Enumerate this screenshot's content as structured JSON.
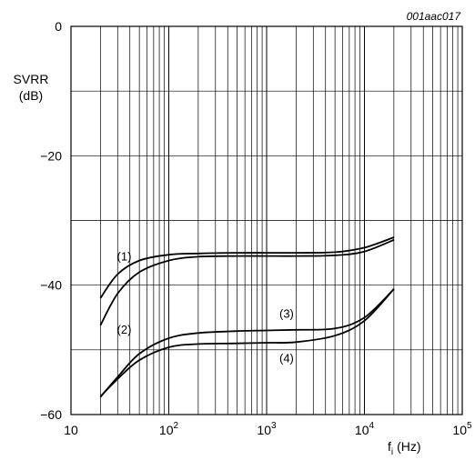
{
  "chart_data": {
    "type": "line",
    "reference_id": "001aac017",
    "y_title_line1": "SVRR",
    "y_title_line2": "(dB)",
    "x_title_main": "f",
    "x_title_sub": "i",
    "x_title_unit": "(Hz)",
    "x_scale": "log",
    "xlim": [
      10,
      100000
    ],
    "ylim": [
      -60,
      0
    ],
    "grid": true,
    "y_tick_values": [
      0,
      -20,
      -40,
      -60
    ],
    "y_tick_labels": [
      "0",
      "−20",
      "−40",
      "−60"
    ],
    "x_tick_labels": [
      {
        "value": 10,
        "base": "10",
        "exp": ""
      },
      {
        "value": 100,
        "base": "10",
        "exp": "2"
      },
      {
        "value": 1000,
        "base": "10",
        "exp": "3"
      },
      {
        "value": 10000,
        "base": "10",
        "exp": "4"
      },
      {
        "value": 100000,
        "base": "10",
        "exp": "5"
      }
    ],
    "series": [
      {
        "name": "(1)",
        "label_at": [
          35,
          -35.5
        ],
        "x": [
          20,
          30,
          50,
          100,
          200,
          500,
          1000,
          2000,
          5000,
          10000,
          20000
        ],
        "y": [
          -42,
          -38.3,
          -36.2,
          -35.3,
          -35.1,
          -35.0,
          -35.0,
          -35.0,
          -34.9,
          -34.2,
          -32.6
        ]
      },
      {
        "name": "(2)",
        "label_at": [
          35,
          -46.8
        ],
        "x": [
          20,
          30,
          50,
          100,
          200,
          500,
          1000,
          2000,
          5000,
          10000,
          20000
        ],
        "y": [
          -46.2,
          -41.3,
          -38.0,
          -36.2,
          -35.6,
          -35.5,
          -35.5,
          -35.5,
          -35.4,
          -34.8,
          -33.0
        ]
      },
      {
        "name": "(3)",
        "label_at": [
          1600,
          -44.3
        ],
        "x": [
          20,
          30,
          50,
          100,
          200,
          500,
          1000,
          2000,
          5000,
          10000,
          20000
        ],
        "y": [
          -57.3,
          -54.2,
          -50.6,
          -48.2,
          -47.4,
          -47.1,
          -47.0,
          -46.9,
          -46.7,
          -45.0,
          -40.6
        ]
      },
      {
        "name": "(4)",
        "label_at": [
          1600,
          -51.2
        ],
        "x": [
          20,
          30,
          50,
          100,
          200,
          500,
          1000,
          2000,
          5000,
          10000,
          20000
        ],
        "y": [
          -57.2,
          -54.5,
          -51.6,
          -49.6,
          -49.1,
          -49.0,
          -48.9,
          -48.8,
          -47.8,
          -45.5,
          -40.6
        ]
      }
    ]
  }
}
